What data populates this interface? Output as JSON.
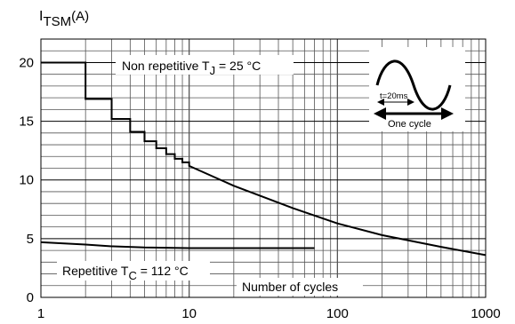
{
  "chart_data": {
    "type": "line",
    "ylabel": "I",
    "ylabel_sub": "TSM",
    "ylabel_unit": "(A)",
    "xlabel": "Number of cycles",
    "x_scale": "log",
    "xlim": [
      1,
      1000
    ],
    "ylim": [
      0,
      22
    ],
    "x_ticks": [
      1,
      10,
      100,
      1000
    ],
    "x_tick_labels": [
      "1",
      "10",
      "100",
      "1000"
    ],
    "y_ticks": [
      0,
      5,
      10,
      15,
      20
    ],
    "y_tick_labels": [
      "0",
      "5",
      "10",
      "15",
      "20"
    ],
    "grid": true,
    "series": [
      {
        "name": "Non repetitive T_J = 25 °C",
        "label_main": "Non repetitive T",
        "label_sub": "J",
        "label_tail": " = 25 °C",
        "step": true,
        "x": [
          1,
          2,
          3,
          4,
          5,
          6,
          7,
          8,
          9,
          10,
          20,
          50,
          100,
          200,
          500,
          1000
        ],
        "y": [
          20.0,
          16.9,
          15.2,
          14.1,
          13.3,
          12.7,
          12.2,
          11.8,
          11.5,
          11.2,
          9.5,
          7.6,
          6.3,
          5.3,
          4.3,
          3.6
        ]
      },
      {
        "name": "Repetitive T_C = 112 °C",
        "label_main": "Repetitive T",
        "label_sub": "C",
        "label_tail": " = 112 °C",
        "step": false,
        "x": [
          1,
          2,
          3,
          5,
          10,
          20,
          70
        ],
        "y": [
          4.7,
          4.5,
          4.35,
          4.25,
          4.2,
          4.2,
          4.2
        ]
      }
    ],
    "inset": {
      "text_period": "t=20ms",
      "text_cycle": "One cycle"
    }
  }
}
